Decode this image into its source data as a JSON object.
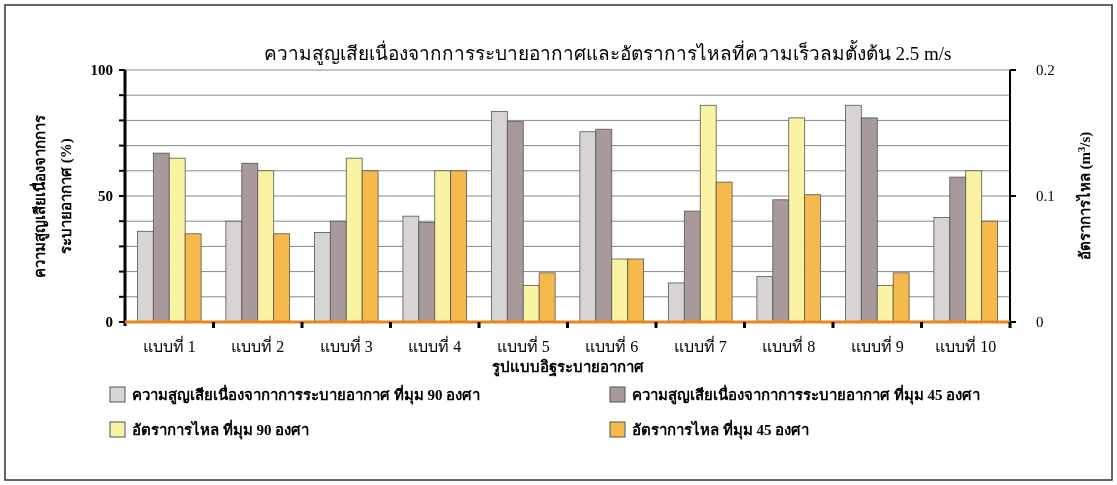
{
  "chart_data": {
    "type": "bar",
    "title": "ความสูญเสียเนื่องจากการระบายอากาศและอัตราการไหลที่ความเร็วลมตั้งต้น 2.5 m/s",
    "xlabel": "รูปแบบอิฐระบายอากาศ",
    "ylabel": "ความสูญเสียเนื่องจากการ\nระบายอากาศ (%)",
    "y2label": "อัตราการไหล (m$^{3}$/s)",
    "categories": [
      "แบบที่ 1",
      "แบบที่ 2",
      "แบบที่ 3",
      "แบบที่ 4",
      "แบบที่ 5",
      "แบบที่ 6",
      "แบบที่ 7",
      "แบบที่ 8",
      "แบบที่ 9",
      "แบบที่ 10"
    ],
    "series": [
      {
        "name": "ความสูญเสียเนื่องจากาการระบายอากาศ ที่มุม 90 องศา",
        "color": "#d9d4d4",
        "values": [
          36,
          40,
          35.5,
          42,
          83.5,
          75.5,
          15.5,
          18,
          86,
          41.5
        ]
      },
      {
        "name": "ความสูญเสียเนื่องจากาการระบายอากาศ ที่มุม 45 องศา",
        "color": "#a89a9a",
        "values": [
          67,
          63,
          40,
          39.5,
          79.5,
          76.5,
          44,
          48.5,
          81,
          57.5
        ]
      },
      {
        "name": "อัตราการไหล ที่มุม 90 องศา",
        "color": "#fbf3a4",
        "axis": "y2",
        "values": [
          0.13,
          0.12,
          0.13,
          0.12,
          0.029,
          0.05,
          0.172,
          0.162,
          0.029,
          0.12
        ]
      },
      {
        "name": "อัตราการไหล ที่มุม 45 องศา",
        "color": "#f5b94c",
        "axis": "y2",
        "values": [
          0.07,
          0.07,
          0.12,
          0.12,
          0.039,
          0.05,
          0.111,
          0.101,
          0.039,
          0.08
        ]
      }
    ],
    "ylim": [
      0,
      100
    ],
    "yticks": [
      0,
      {
        "value": 10,
        "label": null
      },
      {
        "value": 20,
        "label": null
      },
      {
        "value": 30,
        "label": null
      },
      {
        "value": 40,
        "label": null
      },
      50,
      {
        "value": 60,
        "label": null
      },
      {
        "value": 70,
        "label": null
      },
      {
        "value": 80,
        "label": null
      },
      {
        "value": 90,
        "label": null
      },
      100
    ],
    "y2lim": [
      0,
      0.2
    ],
    "y2ticks": [
      0,
      0.1,
      0.2
    ],
    "grid": "y",
    "legend": "bottom"
  }
}
